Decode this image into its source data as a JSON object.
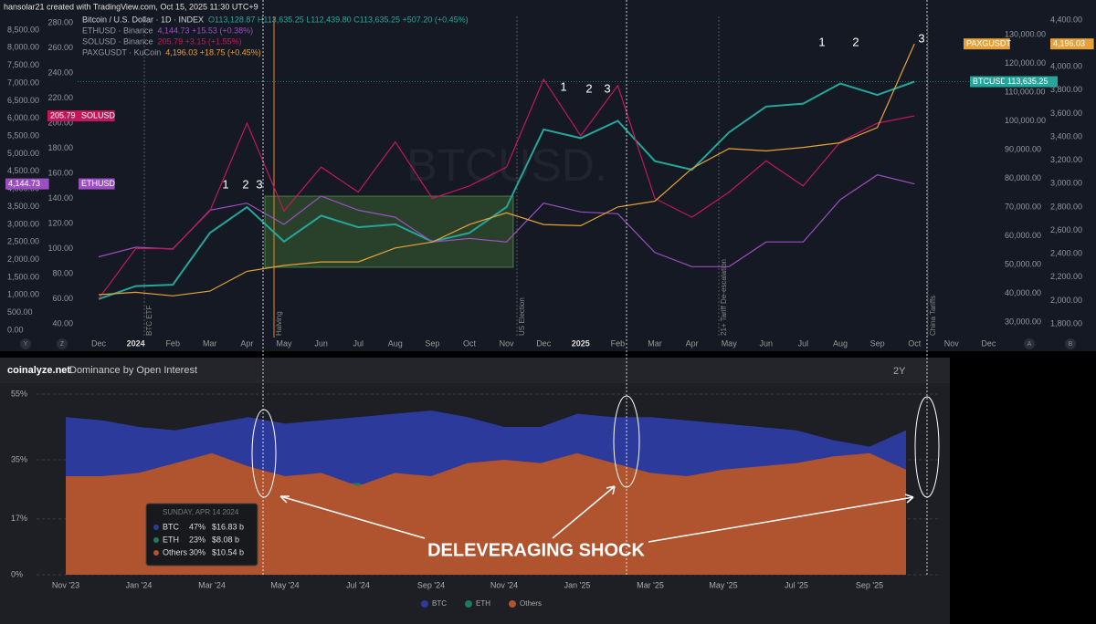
{
  "header": {
    "credit": "hansolar21 created with TradingView.com, Oct 15, 2025 11:30 UTC+9"
  },
  "chart_data": [
    {
      "type": "line",
      "watermark": "BTCUSD.",
      "categories": [
        "Dec",
        "2024",
        "Feb",
        "Mar",
        "Apr",
        "May",
        "Jun",
        "Jul",
        "Aug",
        "Sep",
        "Oct",
        "Nov",
        "Dec",
        "2025",
        "Feb",
        "Mar",
        "Apr",
        "May",
        "Jun",
        "Jul",
        "Aug",
        "Sep",
        "Oct",
        "Nov",
        "Dec"
      ],
      "series": [
        {
          "name": "Bitcoin / U.S. Dollar · 1D · INDEX",
          "quote": "O113,128.87 H113,635.25 L112,439.80 C113,635.25 +507.20 (+0.45%)",
          "color": "#26a69a",
          "values": [
            38000,
            42500,
            43000,
            61000,
            70000,
            58000,
            67000,
            63000,
            64000,
            58000,
            61000,
            70000,
            97000,
            94000,
            100000,
            86000,
            83000,
            96000,
            105000,
            106000,
            113000,
            109000,
            113635.25,
            null,
            null
          ],
          "tag_name": "BTCUSD",
          "tag": {
            "value": 113635.25,
            "label": "113,635.25"
          },
          "ylim": [
            30000,
            130000
          ],
          "yticks": [
            {
              "value": 30000,
              "label": "30,000.00"
            },
            {
              "value": 40000,
              "label": "40,000.00"
            },
            {
              "value": 50000,
              "label": "50,000.00"
            },
            {
              "value": 60000,
              "label": "60,000.00"
            },
            {
              "value": 70000,
              "label": "70,000.00"
            },
            {
              "value": 80000,
              "label": "80,000.00"
            },
            {
              "value": 90000,
              "label": "90,000.00"
            },
            {
              "value": 100000,
              "label": "100,000.00"
            },
            {
              "value": 110000,
              "label": "110,000.00"
            },
            {
              "value": 120000,
              "label": "120,000.00"
            },
            {
              "value": 130000,
              "label": "130,000.00"
            }
          ]
        },
        {
          "name": "ETHUSD · Binance",
          "quote": "4,144.73 +15.53 (+0.38%)",
          "color": "#9c4fc0",
          "values": [
            2080,
            2350,
            2300,
            3400,
            3600,
            3000,
            3800,
            3400,
            3200,
            2500,
            2600,
            2500,
            3600,
            3350,
            3300,
            2200,
            1800,
            1800,
            2500,
            2500,
            3700,
            4400,
            4144.73,
            null,
            null
          ],
          "tag_name": "ETHUSD",
          "tag": {
            "value": 4144.73,
            "label": "4,144.73"
          },
          "ylim": [
            0,
            8500
          ],
          "yticks": [
            {
              "value": 0,
              "label": "0.00"
            },
            {
              "value": 500,
              "label": "500.00"
            },
            {
              "value": 1000,
              "label": "1,000.00"
            },
            {
              "value": 1500,
              "label": "1,500.00"
            },
            {
              "value": 2000,
              "label": "2,000.00"
            },
            {
              "value": 2500,
              "label": "2,500.00"
            },
            {
              "value": 3000,
              "label": "3,000.00"
            },
            {
              "value": 3500,
              "label": "3,500.00"
            },
            {
              "value": 4000,
              "label": "4,000.00"
            },
            {
              "value": 4500,
              "label": "4,500.00"
            },
            {
              "value": 5000,
              "label": "5,000.00"
            },
            {
              "value": 5500,
              "label": "5,500.00"
            },
            {
              "value": 6000,
              "label": "6,000.00"
            },
            {
              "value": 6500,
              "label": "6,500.00"
            },
            {
              "value": 7000,
              "label": "7,000.00"
            },
            {
              "value": 7500,
              "label": "7,500.00"
            },
            {
              "value": 8000,
              "label": "8,000.00"
            },
            {
              "value": 8500,
              "label": "8,500.00"
            }
          ]
        },
        {
          "name": "SOLUSD · Binance",
          "quote": "205.79 +3.15 (+1.55%)",
          "color": "#c2185b",
          "values": [
            60,
            100,
            100,
            130,
            200,
            130,
            165,
            145,
            185,
            140,
            150,
            165,
            235,
            190,
            230,
            140,
            125,
            145,
            170,
            150,
            185,
            200,
            205.79,
            null,
            null
          ],
          "tag_name": "SOLUSD",
          "tag": {
            "value": 205.79,
            "label": "205.79"
          },
          "ylim": [
            40,
            280
          ],
          "yticks": [
            {
              "value": 40,
              "label": "40.00"
            },
            {
              "value": 60,
              "label": "60.00"
            },
            {
              "value": 80,
              "label": "80.00"
            },
            {
              "value": 100,
              "label": "100.00"
            },
            {
              "value": 120,
              "label": "120.00"
            },
            {
              "value": 140,
              "label": "140.00"
            },
            {
              "value": 160,
              "label": "160.00"
            },
            {
              "value": 180,
              "label": "180.00"
            },
            {
              "value": 200,
              "label": "200.00"
            },
            {
              "value": 220,
              "label": "220.00"
            },
            {
              "value": 240,
              "label": "240.00"
            },
            {
              "value": 260,
              "label": "260.00"
            },
            {
              "value": 280,
              "label": "280.00"
            }
          ]
        },
        {
          "name": "PAXGUSDT · KuCoin",
          "quote": "4,196.03 +18.75 (+0.45%)",
          "color": "#e5a23a",
          "values": [
            2050,
            2070,
            2040,
            2080,
            2250,
            2300,
            2330,
            2330,
            2450,
            2500,
            2650,
            2750,
            2650,
            2640,
            2800,
            2850,
            3130,
            3300,
            3280,
            3310,
            3350,
            3480,
            4196.03,
            null,
            null
          ],
          "tag_name": "PAXGUSDT",
          "tag": {
            "value": 4196.03,
            "label": "4,196.03"
          },
          "ylim": [
            1800,
            4400
          ],
          "yticks": [
            {
              "value": 1800,
              "label": "1,800.00"
            },
            {
              "value": 2000,
              "label": "2,000.00"
            },
            {
              "value": 2200,
              "label": "2,200.00"
            },
            {
              "value": 2400,
              "label": "2,400.00"
            },
            {
              "value": 2600,
              "label": "2,600.00"
            },
            {
              "value": 2800,
              "label": "2,800.00"
            },
            {
              "value": 3000,
              "label": "3,000.00"
            },
            {
              "value": 3200,
              "label": "3,200.00"
            },
            {
              "value": 3400,
              "label": "3,400.00"
            },
            {
              "value": 3600,
              "label": "3,600.00"
            },
            {
              "value": 3800,
              "label": "3,800.00"
            },
            {
              "value": 4000,
              "label": "4,000.00"
            },
            {
              "value": 4200,
              "label": "4,200.00"
            },
            {
              "value": 4400,
              "label": "4,400.00"
            }
          ]
        }
      ],
      "events": [
        "BTC ETF",
        "Halving",
        "US Election",
        "21+ Tariff De-escalation",
        "China Tariffs"
      ],
      "peak_labels": [
        "1",
        "2",
        "3",
        "1",
        "2",
        "3",
        "1",
        "2",
        "3"
      ],
      "toolbar": [
        "Y",
        "Z",
        "A",
        "B"
      ],
      "grid": false
    },
    {
      "type": "area",
      "source": "coinalyze.net",
      "title": "Dominance by Open Interest",
      "range_button": "2Y",
      "annotation": "DELEVERAGING SHOCK",
      "categories": [
        "Nov '23",
        null,
        "Jan '24",
        null,
        "Mar '24",
        null,
        "May '24",
        null,
        "Jul '24",
        null,
        "Sep '24",
        null,
        "Nov '24",
        null,
        "Jan '25",
        null,
        "Mar '25",
        null,
        "May '25",
        null,
        "Jul '25",
        null,
        "Sep '25",
        null
      ],
      "series": [
        {
          "name": "BTC",
          "color": "#2c3a9c",
          "values": [
            48,
            47,
            45,
            44,
            46,
            48,
            46,
            47,
            48,
            49,
            50,
            48,
            45,
            45,
            49,
            48,
            48,
            47,
            46,
            45,
            44,
            41,
            39,
            44
          ]
        },
        {
          "name": "ETH",
          "color": "#1e7a5e",
          "values": [
            22,
            22,
            23,
            23,
            22,
            23,
            25,
            27,
            28,
            24,
            22,
            21,
            22,
            23,
            21,
            20,
            18,
            20,
            21,
            23,
            24,
            24,
            24,
            23
          ]
        },
        {
          "name": "Others",
          "color": "#b0532f",
          "values": [
            30,
            30,
            31,
            34,
            37,
            33,
            30,
            31,
            27,
            31,
            30,
            34,
            35,
            34,
            37,
            34,
            31,
            30,
            32,
            33,
            34,
            36,
            37,
            32
          ]
        }
      ],
      "ylim": [
        0,
        55
      ],
      "yticks": [
        {
          "value": 0,
          "label": "0%"
        },
        {
          "value": 17,
          "label": "17%"
        },
        {
          "value": 35,
          "label": "35%"
        },
        {
          "value": 55,
          "label": "55%"
        }
      ],
      "grid": true,
      "tooltip": {
        "date": "SUNDAY, APR 14 2024",
        "rows": [
          {
            "name": "BTC",
            "value": 47,
            "value_label": "47%",
            "amount": "$16.83 b"
          },
          {
            "name": "ETH",
            "value": 23,
            "value_label": "23%",
            "amount": "$8.08 b"
          },
          {
            "name": "Others",
            "value": 30,
            "value_label": "30%",
            "amount": "$10.54 b"
          }
        ]
      }
    }
  ]
}
